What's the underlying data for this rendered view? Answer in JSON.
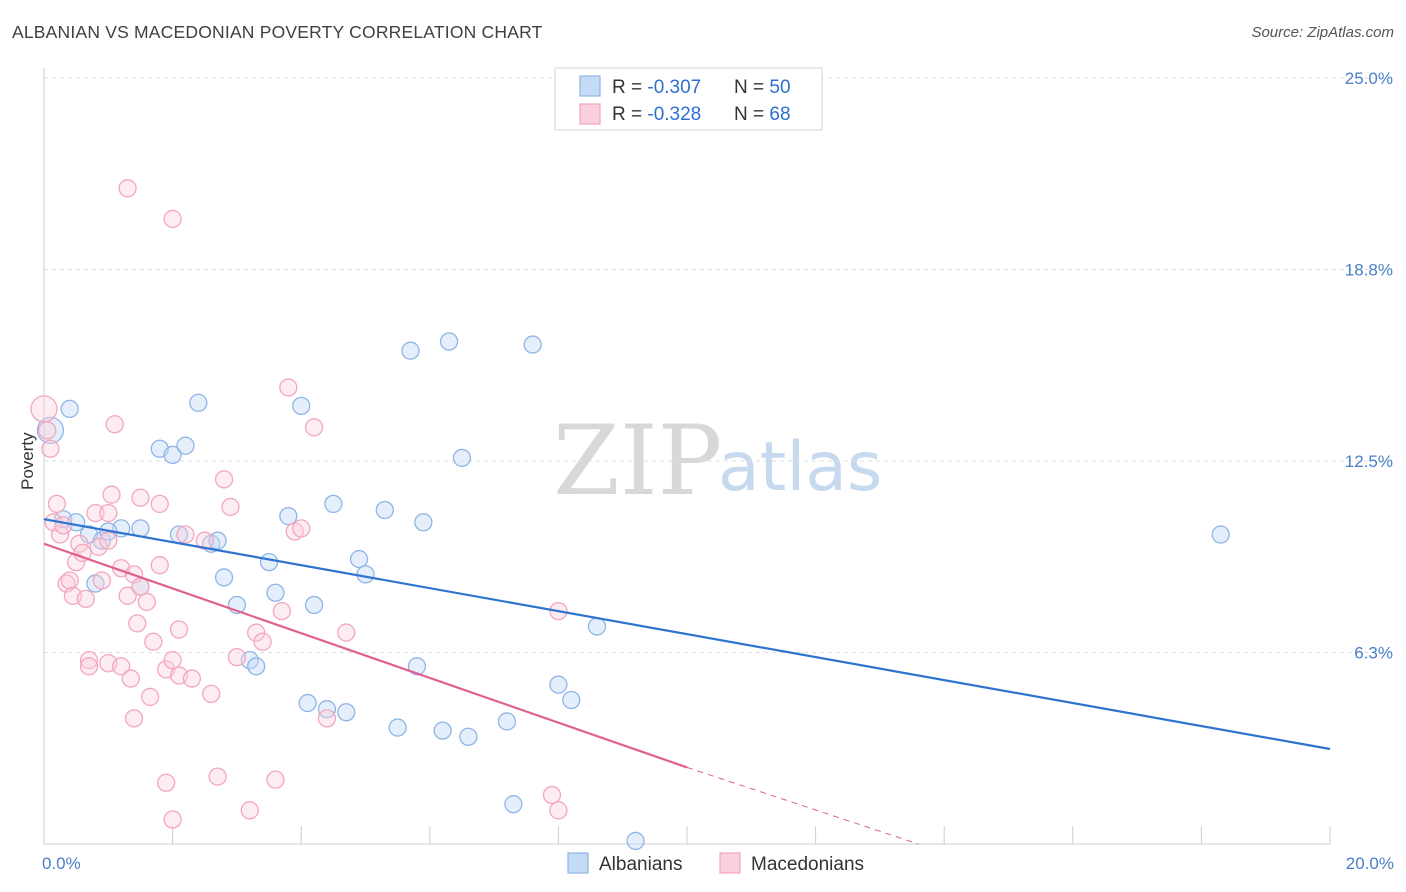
{
  "header": {
    "title": "ALBANIAN VS MACEDONIAN POVERTY CORRELATION CHART",
    "source": "Source: ZipAtlas.com"
  },
  "watermark": {
    "zip": "ZIP",
    "atlas": "atlas"
  },
  "legend": {
    "rows": [
      {
        "r_label": "R = ",
        "r_value": "-0.307",
        "n_label": "N = ",
        "n_value": "50"
      },
      {
        "r_label": "R = ",
        "r_value": "-0.328",
        "n_label": "N = ",
        "n_value": "68"
      }
    ]
  },
  "chart_data": {
    "type": "scatter",
    "title": "ALBANIAN VS MACEDONIAN POVERTY CORRELATION CHART",
    "xlabel": "",
    "ylabel": "Poverty",
    "xlim": [
      0,
      20
    ],
    "ylim": [
      0,
      25
    ],
    "x_tick_labels": [
      {
        "value": 0,
        "label": "0.0%"
      },
      {
        "value": 20,
        "label": "20.0%"
      }
    ],
    "y_tick_labels": [
      {
        "value": 6.25,
        "label": "6.3%"
      },
      {
        "value": 12.5,
        "label": "12.5%"
      },
      {
        "value": 18.75,
        "label": "18.8%"
      },
      {
        "value": 25,
        "label": "25.0%"
      }
    ],
    "grid": true,
    "legend_position": "top-center",
    "series": [
      {
        "name": "Albanians",
        "color": "#8fb5e6",
        "trend_color": "#2f73d0",
        "r": -0.307,
        "n": 50,
        "trend": {
          "x": [
            0,
            20
          ],
          "y": [
            10.6,
            3.1
          ]
        },
        "points": [
          [
            0.1,
            13.5
          ],
          [
            0.4,
            14.2
          ],
          [
            0.3,
            10.6
          ],
          [
            0.5,
            10.5
          ],
          [
            0.7,
            10.1
          ],
          [
            0.9,
            9.9
          ],
          [
            0.8,
            8.5
          ],
          [
            1.2,
            10.3
          ],
          [
            1.5,
            10.3
          ],
          [
            1.0,
            10.2
          ],
          [
            1.5,
            8.4
          ],
          [
            1.8,
            12.9
          ],
          [
            2.0,
            12.7
          ],
          [
            2.1,
            10.1
          ],
          [
            2.2,
            13.0
          ],
          [
            2.4,
            14.4
          ],
          [
            2.6,
            9.8
          ],
          [
            2.7,
            9.9
          ],
          [
            2.8,
            8.7
          ],
          [
            3.0,
            7.8
          ],
          [
            3.2,
            6.0
          ],
          [
            3.3,
            5.8
          ],
          [
            3.5,
            9.2
          ],
          [
            3.6,
            8.2
          ],
          [
            3.8,
            10.7
          ],
          [
            4.0,
            14.3
          ],
          [
            4.1,
            4.6
          ],
          [
            4.2,
            7.8
          ],
          [
            4.4,
            4.4
          ],
          [
            4.5,
            11.1
          ],
          [
            4.7,
            4.3
          ],
          [
            4.9,
            9.3
          ],
          [
            5.0,
            8.8
          ],
          [
            5.3,
            10.9
          ],
          [
            5.5,
            3.8
          ],
          [
            5.7,
            16.1
          ],
          [
            5.8,
            5.8
          ],
          [
            5.9,
            10.5
          ],
          [
            6.2,
            3.7
          ],
          [
            6.3,
            16.4
          ],
          [
            6.5,
            12.6
          ],
          [
            6.6,
            3.5
          ],
          [
            7.2,
            4.0
          ],
          [
            7.3,
            1.3
          ],
          [
            7.6,
            16.3
          ],
          [
            8.0,
            5.2
          ],
          [
            8.2,
            4.7
          ],
          [
            8.6,
            7.1
          ],
          [
            9.2,
            0.1
          ],
          [
            18.3,
            10.1
          ]
        ]
      },
      {
        "name": "Macedonians",
        "color": "#f2a7bf",
        "trend_color": "#e0608f",
        "r": -0.328,
        "n": 68,
        "trend": {
          "x": [
            0,
            10
          ],
          "y": [
            9.8,
            2.5
          ]
        },
        "trend_extension": {
          "x": [
            10,
            13.6
          ],
          "y": [
            2.5,
            0.0
          ]
        },
        "points": [
          [
            0.0,
            14.2
          ],
          [
            0.05,
            13.5
          ],
          [
            0.1,
            12.9
          ],
          [
            0.15,
            10.5
          ],
          [
            0.2,
            11.1
          ],
          [
            0.25,
            10.1
          ],
          [
            0.3,
            10.4
          ],
          [
            0.35,
            8.5
          ],
          [
            0.4,
            8.6
          ],
          [
            0.45,
            8.1
          ],
          [
            0.5,
            9.2
          ],
          [
            0.55,
            9.8
          ],
          [
            0.6,
            9.5
          ],
          [
            0.65,
            8.0
          ],
          [
            0.7,
            6.0
          ],
          [
            0.7,
            5.8
          ],
          [
            0.8,
            10.8
          ],
          [
            0.85,
            9.7
          ],
          [
            0.9,
            8.6
          ],
          [
            1.0,
            10.8
          ],
          [
            1.0,
            9.9
          ],
          [
            1.0,
            5.9
          ],
          [
            1.05,
            11.4
          ],
          [
            1.1,
            13.7
          ],
          [
            1.2,
            9.0
          ],
          [
            1.2,
            5.8
          ],
          [
            1.3,
            8.1
          ],
          [
            1.35,
            5.4
          ],
          [
            1.4,
            4.1
          ],
          [
            1.4,
            8.8
          ],
          [
            1.45,
            7.2
          ],
          [
            1.5,
            11.3
          ],
          [
            1.6,
            7.9
          ],
          [
            1.65,
            4.8
          ],
          [
            1.7,
            6.6
          ],
          [
            1.8,
            9.1
          ],
          [
            1.8,
            11.1
          ],
          [
            1.9,
            5.7
          ],
          [
            1.9,
            2.0
          ],
          [
            2.0,
            6.0
          ],
          [
            2.0,
            0.8
          ],
          [
            2.1,
            5.5
          ],
          [
            2.1,
            7.0
          ],
          [
            2.2,
            10.1
          ],
          [
            2.3,
            5.4
          ],
          [
            2.5,
            9.9
          ],
          [
            2.6,
            4.9
          ],
          [
            2.7,
            2.2
          ],
          [
            2.8,
            11.9
          ],
          [
            2.9,
            11.0
          ],
          [
            3.0,
            6.1
          ],
          [
            3.2,
            1.1
          ],
          [
            3.3,
            6.9
          ],
          [
            3.4,
            6.6
          ],
          [
            3.6,
            2.1
          ],
          [
            3.7,
            7.6
          ],
          [
            3.8,
            14.9
          ],
          [
            3.9,
            10.2
          ],
          [
            4.0,
            10.3
          ],
          [
            4.2,
            13.6
          ],
          [
            4.4,
            4.1
          ],
          [
            4.7,
            6.9
          ],
          [
            1.3,
            21.4
          ],
          [
            2.0,
            20.4
          ],
          [
            1.5,
            8.4
          ],
          [
            8.0,
            7.6
          ],
          [
            7.9,
            1.6
          ],
          [
            8.0,
            1.1
          ]
        ]
      }
    ]
  }
}
